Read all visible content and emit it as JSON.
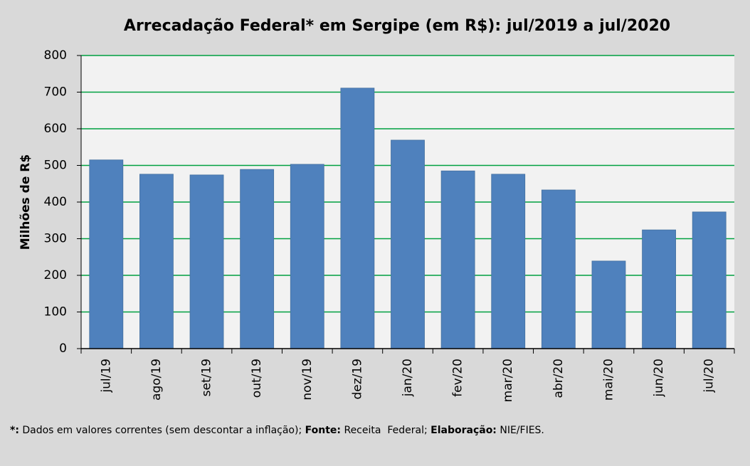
{
  "chart_data": {
    "type": "bar",
    "title": "Arrecadação Federal* em Sergipe (em R$): jul/2019 a jul/2020",
    "y_label": "Milhões de R$",
    "categories": [
      "jul/19",
      "ago/19",
      "set/19",
      "out/19",
      "nov/19",
      "dez/19",
      "jan/20",
      "fev/20",
      "mar/20",
      "abr/20",
      "mai/20",
      "jun/20",
      "jul/20"
    ],
    "values": [
      515,
      476,
      474,
      489,
      503,
      711,
      569,
      485,
      476,
      433,
      239,
      324,
      373
    ],
    "color": "#4f81bd",
    "grid_color": "#00a040",
    "ylim": [
      0,
      800
    ],
    "yticks": [
      0,
      100,
      200,
      300,
      400,
      500,
      600,
      700,
      800
    ],
    "grid": true,
    "footnote": [
      {
        "text": "*:",
        "bold": true
      },
      {
        "text": " Dados em valores correntes (sem descontar a inflação); ",
        "bold": false
      },
      {
        "text": "Fonte:",
        "bold": true
      },
      {
        "text": " Receita  Federal; ",
        "bold": false
      },
      {
        "text": "Elaboração:",
        "bold": true
      },
      {
        "text": " NIE/FIES.",
        "bold": false
      }
    ]
  }
}
